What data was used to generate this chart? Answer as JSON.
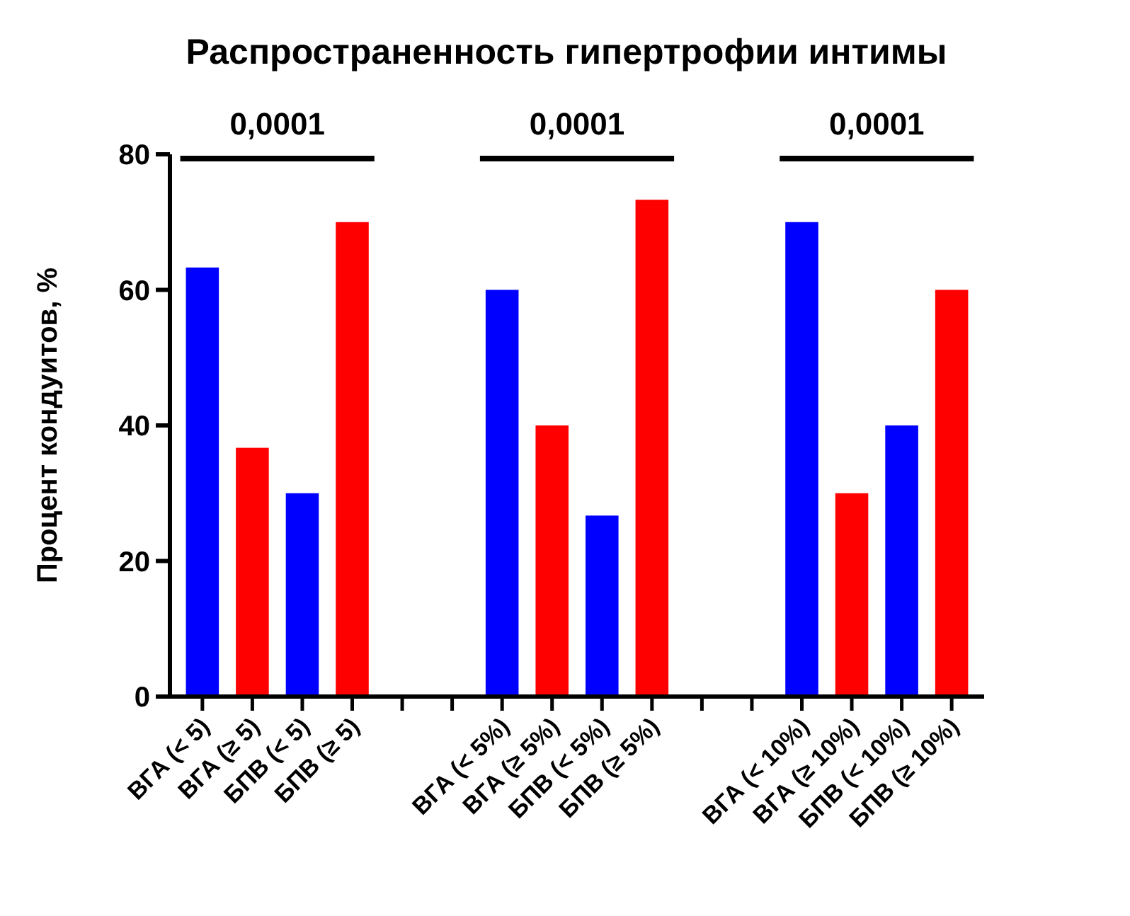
{
  "chart_data": {
    "type": "bar",
    "title": "Распространенность гипертрофии интимы",
    "ylabel": "Процент кондуитов, %",
    "categories": [
      "ВГА (< 5)",
      "ВГА (≥ 5)",
      "БПВ (< 5)",
      "БПВ (≥ 5)",
      null,
      null,
      "ВГА (< 5%)",
      "ВГА (≥ 5%)",
      "БПВ (< 5%)",
      "БПВ (≥ 5%)",
      null,
      null,
      "ВГА (< 10%)",
      "ВГА (≥ 10%)",
      "БПВ (< 10%)",
      "БПВ (≥ 10%)"
    ],
    "values": [
      63.3,
      36.7,
      30,
      70,
      null,
      null,
      60,
      40,
      26.7,
      73.3,
      null,
      null,
      70,
      30,
      40,
      60
    ],
    "colors": [
      "#0000ff",
      "#ff0000",
      "#0000ff",
      "#ff0000",
      null,
      null,
      "#0000ff",
      "#ff0000",
      "#0000ff",
      "#ff0000",
      null,
      null,
      "#0000ff",
      "#ff0000",
      "#0000ff",
      "#ff0000"
    ],
    "ylim": [
      0,
      80
    ],
    "yticks": [
      0,
      20,
      40,
      60,
      80
    ],
    "grid": false,
    "annotations": [
      "0,0001",
      "0,0001",
      "0,0001"
    ]
  }
}
